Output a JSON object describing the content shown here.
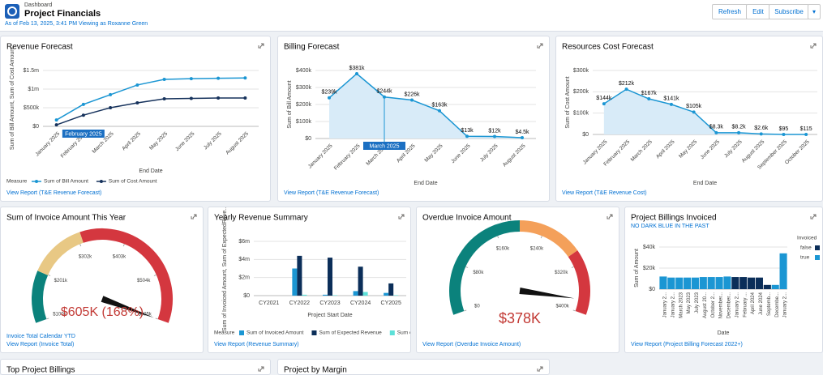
{
  "header": {
    "kicker": "Dashboard",
    "title": "Project Financials",
    "subtitle": "As of Feb 13, 2025, 3:41 PM Viewing as Roxanne Green",
    "buttons": [
      "Refresh",
      "Edit",
      "Subscribe"
    ]
  },
  "widgets": [
    {
      "title": "Revenue Forecast",
      "type": "line",
      "y_label": "Sum of Bill Amount, Sum of Cost Amount",
      "x_label": "End Date",
      "highlight": "February 2025",
      "categories": [
        "January 2025",
        "February 2025",
        "March 2025",
        "April 2025",
        "May 2025",
        "June 2025",
        "July 2025",
        "August 2025"
      ],
      "series": [
        {
          "name": "Sum of Bill Amount",
          "color": "#1b96d3",
          "values": [
            170000,
            590000,
            850000,
            1110000,
            1260000,
            1280000,
            1290000,
            1300000
          ]
        },
        {
          "name": "Sum of Cost Amount",
          "color": "#16325c",
          "values": [
            40000,
            300000,
            500000,
            630000,
            740000,
            750000,
            760000,
            760000
          ]
        }
      ],
      "ylim": [
        0,
        1500000
      ],
      "yticks": [
        {
          "value": 0,
          "label": "$0"
        },
        {
          "value": 500000,
          "label": "$500k"
        },
        {
          "value": 1000000,
          "label": "$1m"
        },
        {
          "value": 1500000,
          "label": "$1.5m"
        }
      ],
      "grid": true,
      "legend_title": "Measure",
      "link": "View Report (T&E Revenue Forecast)"
    },
    {
      "title": "Billing Forecast",
      "type": "area",
      "y_label": "Sum of Bill Amount",
      "x_label": "End Date",
      "highlight": "March 2025",
      "categories": [
        "January 2025",
        "February 2025",
        "March 2025",
        "April 2025",
        "May 2025",
        "June 2025",
        "July 2025",
        "August 2025"
      ],
      "series": [
        {
          "name": "Sum of Bill Amount",
          "color": "#1b96d3",
          "values": [
            239000,
            381000,
            244000,
            226000,
            163000,
            13000,
            12000,
            4500
          ],
          "value_labels": [
            "$239k",
            "$381k",
            "$244k",
            "$226k",
            "$163k",
            "$13k",
            "$12k",
            "$4.5k"
          ]
        }
      ],
      "ylim": [
        0,
        400000
      ],
      "yticks": [
        {
          "value": 0,
          "label": "$0"
        },
        {
          "value": 100000,
          "label": "$100k"
        },
        {
          "value": 200000,
          "label": "$200k"
        },
        {
          "value": 300000,
          "label": "$300k"
        },
        {
          "value": 400000,
          "label": "$400k"
        }
      ],
      "grid": true,
      "link": "View Report (T&E Revenue Forecast)"
    },
    {
      "title": "Resources Cost Forecast",
      "type": "area",
      "y_label": "Sum of Cost Amount",
      "x_label": "End Date",
      "categories": [
        "January 2025",
        "February 2025",
        "March 2025",
        "April 2025",
        "May 2025",
        "June 2025",
        "July 2025",
        "August 2025",
        "September 2025",
        "October 2025"
      ],
      "series": [
        {
          "name": "Sum of Cost Amount",
          "color": "#1b96d3",
          "values": [
            144000,
            212000,
            167000,
            141000,
            105000,
            8300,
            8200,
            2600,
            95,
            115
          ],
          "value_labels": [
            "$144k",
            "$212k",
            "$167k",
            "$141k",
            "$105k",
            "$8.3k",
            "$8.2k",
            "$2.6k",
            "$95",
            "$115"
          ]
        }
      ],
      "ylim": [
        0,
        300000
      ],
      "yticks": [
        {
          "value": 0,
          "label": "$0"
        },
        {
          "value": 100000,
          "label": "$100k"
        },
        {
          "value": 200000,
          "label": "$200k"
        },
        {
          "value": 300000,
          "label": "$300k"
        }
      ],
      "grid": true,
      "link": "View Report (T&E Revenue Cost)"
    },
    {
      "title": "Sum of Invoice Amount This Year",
      "type": "gauge",
      "value": 605000,
      "value_label": "$605K (168%)",
      "ylim": [
        100000,
        605000
      ],
      "yticks": [
        {
          "value": 100000,
          "label": "$100k"
        },
        {
          "value": 201000,
          "label": "$201k"
        },
        {
          "value": 302000,
          "label": "$302k"
        },
        {
          "value": 403000,
          "label": "$403k"
        },
        {
          "value": 504000,
          "label": "$504k"
        },
        {
          "value": 605000,
          "label": "$605k"
        }
      ],
      "bands": [
        {
          "to": 200000,
          "color": "#0b827c"
        },
        {
          "to": 310000,
          "color": "#e8c884"
        },
        {
          "to": 605000,
          "color": "#d4373f"
        }
      ],
      "caption": "Invoice Total Calendar YTD",
      "link": "View Report (Invoice Total)"
    },
    {
      "title": "Yearly Revenue Summary",
      "type": "bar",
      "y_label": "Sum of Invoiced Amount, Sum of ExpectedReve...",
      "x_label": "Project Start Date",
      "categories": [
        "CY2021",
        "CY2022",
        "CY2023",
        "CY2024",
        "CY2025"
      ],
      "series": [
        {
          "name": "Sum of Invoiced Amount",
          "color": "#1b96d3",
          "values": [
            0,
            3000000,
            100000,
            500000,
            300000
          ]
        },
        {
          "name": "Sum of Expected Revenue",
          "color": "#0b2e59",
          "values": [
            0,
            4400000,
            4200000,
            3200000,
            1350000
          ]
        },
        {
          "name": "Sum of",
          "color": "#5de0d8",
          "values": [
            0,
            100000,
            50000,
            400000,
            50000
          ]
        }
      ],
      "ylim": [
        0,
        6000000
      ],
      "yticks": [
        {
          "value": 0,
          "label": "$0"
        },
        {
          "value": 2000000,
          "label": "$2m"
        },
        {
          "value": 4000000,
          "label": "$4m"
        },
        {
          "value": 6000000,
          "label": "$6m"
        }
      ],
      "grid": true,
      "legend_title": "Measure",
      "link": "View Report (Revenue Summary)"
    },
    {
      "title": "Overdue Invoice Amount",
      "type": "gauge",
      "value": 378000,
      "value_label": "$378K",
      "ylim": [
        0,
        400000
      ],
      "yticks": [
        {
          "value": 0,
          "label": "$0"
        },
        {
          "value": 80000,
          "label": "$80k"
        },
        {
          "value": 160000,
          "label": "$160k"
        },
        {
          "value": 240000,
          "label": "$240k"
        },
        {
          "value": 320000,
          "label": "$320k"
        },
        {
          "value": 400000,
          "label": "$400k"
        }
      ],
      "bands": [
        {
          "to": 200000,
          "color": "#0b827c"
        },
        {
          "to": 300000,
          "color": "#f4a05a"
        },
        {
          "to": 400000,
          "color": "#d4373f"
        }
      ],
      "link": "View Report (Overdue Invoice Amount)"
    },
    {
      "title": "Project Billings Invoiced",
      "subtitle": "NO DARK BLUE IN THE PAST",
      "type": "stacked_bar",
      "y_label": "Sum of Amount",
      "x_label": "Date",
      "categories": [
        "January 2...",
        "January 2...",
        "March 2023",
        "May 2023",
        "July 2023",
        "August 20...",
        "October 2...",
        "November...",
        "December...",
        "January 2...",
        "February ...",
        "April 2024",
        "June 2024",
        "Septemb...",
        "Decembe...",
        "January 2..."
      ],
      "series": [
        {
          "name": "true",
          "color": "#1b96d3",
          "values": [
            12000,
            11000,
            11000,
            11000,
            11000,
            11500,
            11500,
            11500,
            12000,
            0,
            0,
            0,
            0,
            0,
            4000,
            34000
          ]
        },
        {
          "name": "false",
          "color": "#0b2e59",
          "values": [
            0,
            0,
            0,
            0,
            0,
            0,
            0,
            0,
            0,
            11500,
            11500,
            11000,
            11000,
            4000,
            0,
            0
          ]
        }
      ],
      "ylim": [
        0,
        40000
      ],
      "yticks": [
        {
          "value": 0,
          "label": "$0"
        },
        {
          "value": 20000,
          "label": "$20k"
        },
        {
          "value": 40000,
          "label": "$40k"
        }
      ],
      "grid": true,
      "legend_title": "Invoiced",
      "link": "View Report (Project Billing Forecast 2022+)"
    },
    {
      "title": "Top Project Billings"
    },
    {
      "title": "Project by Margin"
    }
  ]
}
